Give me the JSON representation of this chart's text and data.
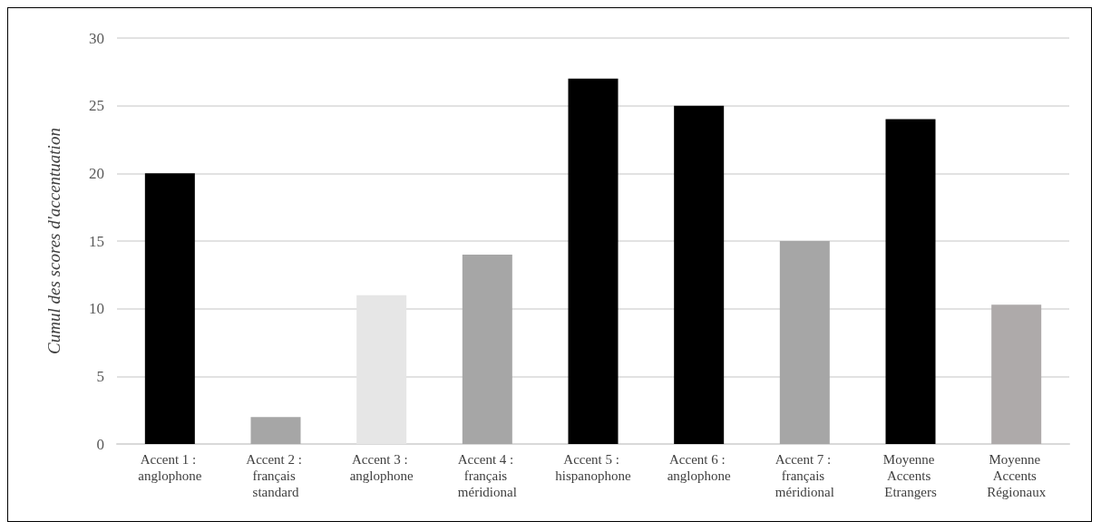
{
  "chart_data": {
    "type": "bar",
    "ylabel": "Cumul des scores d'accentuation",
    "categories": [
      "Accent 1 : anglophone",
      "Accent 2 : français standard",
      "Accent 3 : anglophone",
      "Accent 4 : français méridional",
      "Accent 5 : hispanophone",
      "Accent 6 : anglophone",
      "Accent 7 : français méridional",
      "Moyenne Accents Etrangers",
      "Moyenne Accents Régionaux"
    ],
    "values": [
      20,
      2,
      11,
      14,
      27,
      25,
      15,
      24,
      10.3
    ],
    "colors": [
      "#000000",
      "#a6a6a6",
      "#e6e6e6",
      "#a6a6a6",
      "#000000",
      "#000000",
      "#a6a6a6",
      "#000000",
      "#aeaaaa"
    ],
    "ylim": [
      0,
      30
    ],
    "yticks": [
      0,
      5,
      10,
      15,
      20,
      25,
      30
    ],
    "grid": true
  }
}
